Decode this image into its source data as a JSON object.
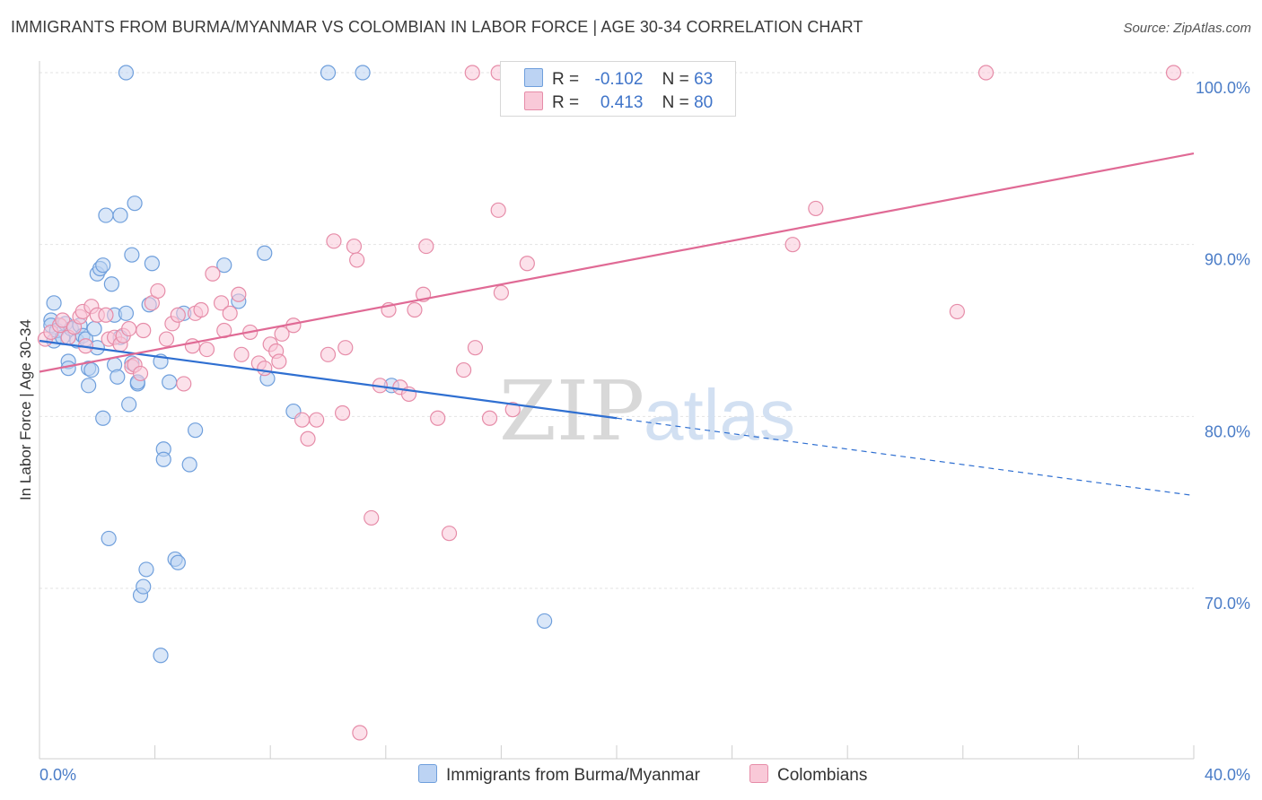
{
  "header": {
    "title": "IMMIGRANTS FROM BURMA/MYANMAR VS COLOMBIAN IN LABOR FORCE | AGE 30-34 CORRELATION CHART",
    "source": "Source: ZipAtlas.com"
  },
  "watermark": {
    "zip": "ZIP",
    "atlas": "atlas"
  },
  "legend": {
    "rows": [
      {
        "r_label": "R =",
        "r_value": "-0.102",
        "n_label": "N =",
        "n_value": "63",
        "color": "#9cc0ee",
        "border": "#6f9fdc"
      },
      {
        "r_label": "R =",
        "r_value": "0.413",
        "n_label": "N =",
        "n_value": "80",
        "color": "#f6b6ca",
        "border": "#e68ca8"
      }
    ]
  },
  "bottom_legend": {
    "series1": "Immigrants from Burma/Myanmar",
    "series2": "Colombians"
  },
  "chart_data": {
    "type": "scatter",
    "title": "IMMIGRANTS FROM BURMA/MYANMAR VS COLOMBIAN IN LABOR FORCE | AGE 30-34 CORRELATION CHART",
    "xlabel": "",
    "ylabel": "In Labor Force | Age 30-34",
    "xlim": [
      0,
      40
    ],
    "ylim": [
      60.5,
      101.5
    ],
    "x_tick_labels": [
      {
        "value": 0,
        "label": "0.0%"
      },
      {
        "value": 40,
        "label": "40.0%"
      }
    ],
    "y_tick_labels": [
      {
        "value": 100,
        "label": "100.0%"
      },
      {
        "value": 90,
        "label": "90.0%"
      },
      {
        "value": 80,
        "label": "80.0%"
      },
      {
        "value": 70,
        "label": "70.0%"
      }
    ],
    "grid": true,
    "legend_position": "top-center",
    "series": [
      {
        "name": "Immigrants from Burma/Myanmar",
        "color": "#6f9fdc",
        "fill": "#bcd3f3",
        "R": -0.102,
        "N": 63,
        "trend": {
          "x0": 0,
          "y0": 84.4,
          "x1": 20,
          "y1": 79.9,
          "dashed_to_x": 40,
          "dashed_to_y": 75.4
        },
        "points": [
          [
            3.0,
            100.0
          ],
          [
            10.0,
            100.0
          ],
          [
            11.2,
            100.0
          ],
          [
            0.4,
            85.6
          ],
          [
            0.4,
            85.3
          ],
          [
            0.5,
            84.4
          ],
          [
            0.5,
            86.6
          ],
          [
            0.6,
            85.0
          ],
          [
            0.8,
            84.6
          ],
          [
            0.9,
            85.4
          ],
          [
            1.0,
            83.2
          ],
          [
            1.0,
            82.8
          ],
          [
            1.1,
            85.1
          ],
          [
            1.3,
            84.4
          ],
          [
            1.4,
            85.3
          ],
          [
            1.5,
            84.7
          ],
          [
            1.6,
            84.5
          ],
          [
            1.7,
            82.8
          ],
          [
            1.7,
            81.8
          ],
          [
            1.8,
            82.7
          ],
          [
            1.9,
            85.1
          ],
          [
            2.0,
            88.3
          ],
          [
            2.0,
            84.0
          ],
          [
            2.1,
            88.6
          ],
          [
            2.2,
            88.8
          ],
          [
            2.2,
            79.9
          ],
          [
            2.3,
            91.7
          ],
          [
            2.4,
            72.9
          ],
          [
            2.5,
            87.7
          ],
          [
            2.6,
            85.9
          ],
          [
            2.6,
            83.0
          ],
          [
            2.7,
            82.3
          ],
          [
            2.8,
            91.7
          ],
          [
            2.8,
            84.6
          ],
          [
            3.1,
            80.7
          ],
          [
            3.2,
            83.1
          ],
          [
            3.2,
            89.4
          ],
          [
            3.3,
            92.4
          ],
          [
            3.4,
            81.9
          ],
          [
            3.4,
            82.0
          ],
          [
            3.5,
            69.6
          ],
          [
            3.6,
            70.1
          ],
          [
            3.7,
            71.1
          ],
          [
            3.8,
            86.5
          ],
          [
            3.9,
            88.9
          ],
          [
            4.2,
            83.2
          ],
          [
            4.3,
            78.1
          ],
          [
            4.3,
            77.5
          ],
          [
            4.5,
            82.0
          ],
          [
            4.7,
            71.7
          ],
          [
            4.8,
            71.5
          ],
          [
            5.2,
            77.2
          ],
          [
            5.4,
            79.2
          ],
          [
            6.4,
            88.8
          ],
          [
            6.9,
            86.7
          ],
          [
            7.8,
            89.5
          ],
          [
            7.9,
            82.2
          ],
          [
            8.8,
            80.3
          ],
          [
            4.2,
            66.1
          ],
          [
            12.2,
            81.8
          ],
          [
            17.5,
            68.1
          ],
          [
            5.0,
            86.0
          ],
          [
            3.0,
            86.0
          ]
        ]
      },
      {
        "name": "Colombians",
        "color": "#e68ca8",
        "fill": "#f9c9d8",
        "R": 0.413,
        "N": 80,
        "trend": {
          "x0": 0,
          "y0": 82.6,
          "x1": 40,
          "y1": 95.3
        },
        "points": [
          [
            15.0,
            100.0
          ],
          [
            15.9,
            100.0
          ],
          [
            22.9,
            100.0
          ],
          [
            32.8,
            100.0
          ],
          [
            39.3,
            100.0
          ],
          [
            0.2,
            84.5
          ],
          [
            0.4,
            84.9
          ],
          [
            0.7,
            85.3
          ],
          [
            0.8,
            85.6
          ],
          [
            1.0,
            84.6
          ],
          [
            1.2,
            85.2
          ],
          [
            1.4,
            85.8
          ],
          [
            1.5,
            86.1
          ],
          [
            1.6,
            84.1
          ],
          [
            1.8,
            86.4
          ],
          [
            2.0,
            85.9
          ],
          [
            2.3,
            85.9
          ],
          [
            2.4,
            84.5
          ],
          [
            2.6,
            84.6
          ],
          [
            2.8,
            84.2
          ],
          [
            2.9,
            84.7
          ],
          [
            3.1,
            85.1
          ],
          [
            3.2,
            82.9
          ],
          [
            3.3,
            83.0
          ],
          [
            3.5,
            82.5
          ],
          [
            3.6,
            85.0
          ],
          [
            3.9,
            86.6
          ],
          [
            4.1,
            87.3
          ],
          [
            4.4,
            84.5
          ],
          [
            4.6,
            85.4
          ],
          [
            4.8,
            85.9
          ],
          [
            5.0,
            81.9
          ],
          [
            5.3,
            84.1
          ],
          [
            5.4,
            86.0
          ],
          [
            5.6,
            86.2
          ],
          [
            5.8,
            83.9
          ],
          [
            6.0,
            88.3
          ],
          [
            6.3,
            86.6
          ],
          [
            6.4,
            85.0
          ],
          [
            6.6,
            86.0
          ],
          [
            6.9,
            87.1
          ],
          [
            7.0,
            83.6
          ],
          [
            7.3,
            84.9
          ],
          [
            7.6,
            83.1
          ],
          [
            7.8,
            82.8
          ],
          [
            8.0,
            84.2
          ],
          [
            8.2,
            83.8
          ],
          [
            8.3,
            83.2
          ],
          [
            8.4,
            84.8
          ],
          [
            8.8,
            85.3
          ],
          [
            9.1,
            79.8
          ],
          [
            9.3,
            78.7
          ],
          [
            9.6,
            79.8
          ],
          [
            10.0,
            83.6
          ],
          [
            10.2,
            90.2
          ],
          [
            10.5,
            80.2
          ],
          [
            10.6,
            84.0
          ],
          [
            10.9,
            89.9
          ],
          [
            11.0,
            89.1
          ],
          [
            11.5,
            74.1
          ],
          [
            11.8,
            81.8
          ],
          [
            12.1,
            86.2
          ],
          [
            12.5,
            81.7
          ],
          [
            12.8,
            81.3
          ],
          [
            13.0,
            86.2
          ],
          [
            13.3,
            87.1
          ],
          [
            13.4,
            89.9
          ],
          [
            13.8,
            79.9
          ],
          [
            14.2,
            73.2
          ],
          [
            14.7,
            82.7
          ],
          [
            15.1,
            84.0
          ],
          [
            15.6,
            79.9
          ],
          [
            15.9,
            92.0
          ],
          [
            16.0,
            87.2
          ],
          [
            16.4,
            80.4
          ],
          [
            16.9,
            88.9
          ],
          [
            26.9,
            92.1
          ],
          [
            26.1,
            90.0
          ],
          [
            31.8,
            86.1
          ],
          [
            11.1,
            61.6
          ]
        ]
      }
    ]
  }
}
